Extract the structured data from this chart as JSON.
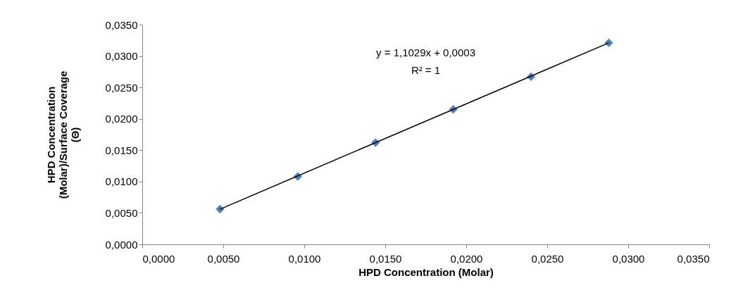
{
  "chart_data": {
    "type": "scatter",
    "xlabel": "HPD Concentration (Molar)",
    "ylabel": "HPD Concentration\n(Molar)/Surface Coverage\n(Θ)",
    "xlim": [
      0,
      0.035
    ],
    "ylim": [
      0,
      0.035
    ],
    "xticks": [
      {
        "value": 0,
        "label": "0,0000"
      },
      {
        "value": 0.005,
        "label": "0,0050"
      },
      {
        "value": 0.01,
        "label": "0,0100"
      },
      {
        "value": 0.015,
        "label": "0,0150"
      },
      {
        "value": 0.02,
        "label": "0,0200"
      },
      {
        "value": 0.025,
        "label": "0,0250"
      },
      {
        "value": 0.03,
        "label": "0,0300"
      },
      {
        "value": 0.035,
        "label": "0,0350"
      }
    ],
    "yticks": [
      {
        "value": 0,
        "label": "0,0000"
      },
      {
        "value": 0.005,
        "label": "0,0050"
      },
      {
        "value": 0.01,
        "label": "0,0100"
      },
      {
        "value": 0.015,
        "label": "0,0150"
      },
      {
        "value": 0.02,
        "label": "0,0200"
      },
      {
        "value": 0.025,
        "label": "0,0250"
      },
      {
        "value": 0.03,
        "label": "0,0300"
      },
      {
        "value": 0.035,
        "label": "0,0350"
      }
    ],
    "marker": "diamond",
    "grid": false,
    "series": [
      {
        "color": "#4f81bd",
        "x": [
          0.0048,
          0.0096,
          0.0144,
          0.0192,
          0.024,
          0.0288
        ],
        "values": [
          0.0056,
          0.0108,
          0.0162,
          0.0215,
          0.0267,
          0.0321
        ]
      },
      {
        "type": "line",
        "marker": "none",
        "color": "#000000",
        "x": [
          0.0048,
          0.0288
        ],
        "values": [
          0.0056,
          0.0321
        ]
      }
    ],
    "annotations": [
      "y = 1,1029x + 0,0003",
      "R² = 1"
    ]
  }
}
